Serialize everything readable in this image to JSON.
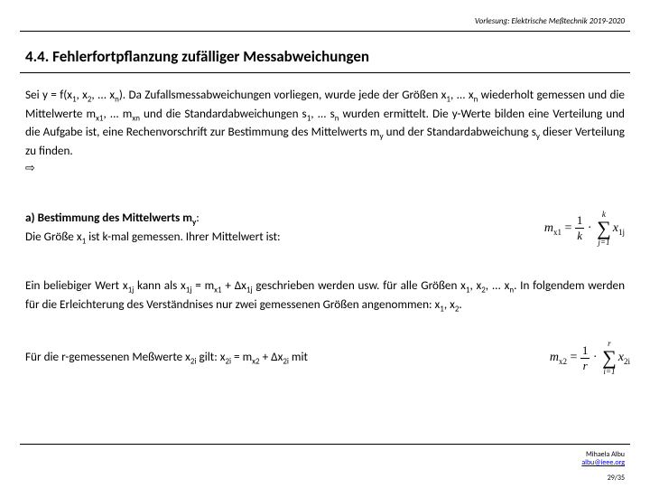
{
  "header": {
    "course": "Vorlesung: Elektrische Meßtechnik 2019-2020"
  },
  "title": "4.4. Fehlerfortpflanzung zufälliger Messabweichungen",
  "para1_a": "Sei y = f(x",
  "para1_b": ", x",
  "para1_c": ", ... x",
  "para1_d": "). Da Zufallsmessabweichungen vorliegen, wurde jede der Größen x",
  "para1_e": ", ... x",
  "para1_f": " wiederholt gemessen und die Mittelwerte m",
  "para1_g": ", ... m",
  "para1_h": " und die Standardabweichungen s",
  "para1_i": ", ... s",
  "para1_j": " wurden ermittelt. Die y-Werte bilden eine Verteilung und die Aufgabe ist, eine Rechenvorschrift zur Bestimmung des Mittelwerts m",
  "para1_k": " und der Standardabweichung s",
  "para1_l": " dieser Verteilung zu finden.",
  "arrow": "⇨",
  "line_a_label": "a) Bestimmung des Mittelwerts m",
  "line_a_sub": "y",
  "line_a_colon": ":",
  "line_a2_a": "Die Größe x",
  "line_a2_b": " ist k-mal gemessen. Ihrer Mittelwert ist:",
  "formula1": {
    "lhs_m": "m",
    "lhs_sub": "x1",
    "eq": " = ",
    "frac_num": "1",
    "frac_den": "k",
    "dot": " · ",
    "sum_top": "k",
    "sum_bot": "j=1",
    "rhs_x": "x",
    "rhs_sub": "1j"
  },
  "para2_a": "Ein beliebiger Wert x",
  "para2_b": " kann als x",
  "para2_c": " = m",
  "para2_d": " + Δx",
  "para2_e": " geschrieben werden usw. für alle Größen x",
  "para2_f": ", x",
  "para2_g": ", ... x",
  "para2_h": ". In folgendem werden für die Erleichterung des Verständnises nur zwei gemessenen Größen angenommen: x",
  "para2_i": ", x",
  "para2_j": ".",
  "para3_a": "Für die r-gemessenen Meßwerte x",
  "para3_b": " gilt:    x",
  "para3_c": " = m",
  "para3_d": " + Δx",
  "para3_e": "  mit",
  "formula2": {
    "lhs_m": "m",
    "lhs_sub": "x2",
    "eq": " = ",
    "frac_num": "1",
    "frac_den": "r",
    "dot": " · ",
    "sum_top": "r",
    "sum_bot": "i=1",
    "rhs_x": "x",
    "rhs_sub": "2i"
  },
  "footer": {
    "name": "Mihaela Albu",
    "email": "albu@ieee.org"
  },
  "page": "29/35",
  "subs": {
    "one": "1",
    "two": "2",
    "n": "n",
    "x1": "x1",
    "xn": "xn",
    "y": "y",
    "onej": "1j",
    "x2": "x2",
    "twoi": "2i"
  }
}
